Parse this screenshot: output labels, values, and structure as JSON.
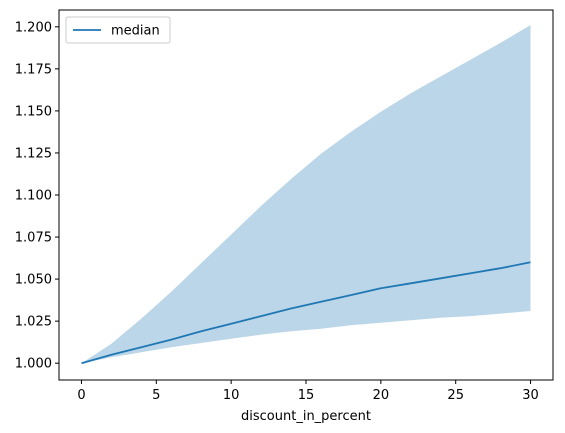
{
  "chart_data": {
    "type": "line",
    "title": "",
    "xlabel": "discount_in_percent",
    "ylabel": "",
    "xlim": [
      -1.5,
      31.5
    ],
    "ylim": [
      0.99,
      1.21
    ],
    "xticks": [
      0,
      5,
      10,
      15,
      20,
      25,
      30
    ],
    "yticks": [
      1.0,
      1.025,
      1.05,
      1.075,
      1.1,
      1.125,
      1.15,
      1.175,
      1.2
    ],
    "xtick_labels": [
      "0",
      "5",
      "10",
      "15",
      "20",
      "25",
      "30"
    ],
    "ytick_labels": [
      "1.000",
      "1.025",
      "1.050",
      "1.075",
      "1.100",
      "1.125",
      "1.150",
      "1.175",
      "1.200"
    ],
    "grid": false,
    "legend_position": "top-left",
    "series": [
      {
        "name": "median",
        "color": "#1f77b4",
        "x": [
          0,
          2,
          4,
          6,
          8,
          10,
          12,
          14,
          16,
          18,
          20,
          22,
          24,
          26,
          28,
          30
        ],
        "y": [
          1.0,
          1.005,
          1.0095,
          1.014,
          1.019,
          1.0235,
          1.028,
          1.0325,
          1.0365,
          1.0405,
          1.0445,
          1.0475,
          1.0505,
          1.0535,
          1.0565,
          1.06
        ]
      }
    ],
    "band": {
      "color": "#1f77b4",
      "opacity": 0.3,
      "x": [
        0,
        2,
        4,
        6,
        8,
        10,
        12,
        14,
        16,
        18,
        20,
        22,
        24,
        26,
        28,
        30
      ],
      "lower": [
        1.0,
        1.0035,
        1.0065,
        1.0095,
        1.012,
        1.0145,
        1.017,
        1.019,
        1.0205,
        1.0225,
        1.024,
        1.0255,
        1.027,
        1.028,
        1.0295,
        1.031
      ],
      "upper": [
        1.0,
        1.0115,
        1.0265,
        1.0425,
        1.0595,
        1.0765,
        1.0935,
        1.1095,
        1.1245,
        1.1375,
        1.1495,
        1.1605,
        1.1705,
        1.1805,
        1.1905,
        1.201
      ]
    }
  }
}
